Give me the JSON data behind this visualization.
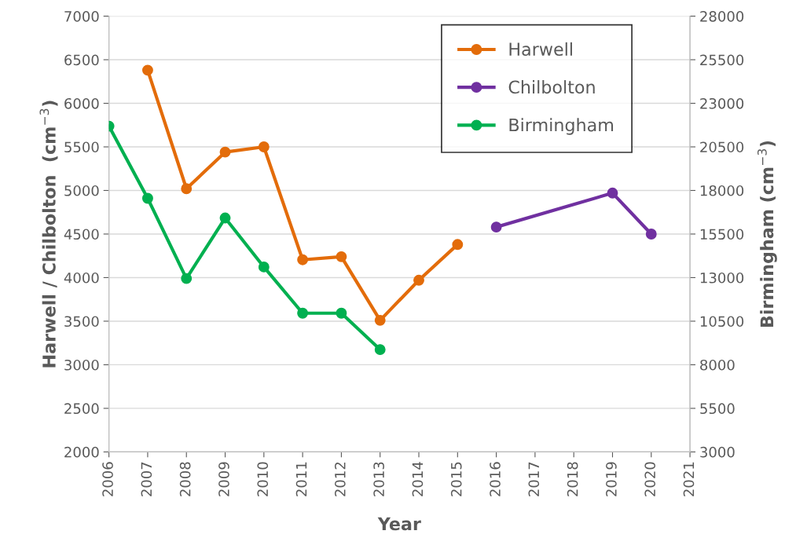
{
  "chart_data": {
    "type": "line",
    "xlabel": "Year",
    "ylabel": "Harwell / Chilbolton  (cm$^{−3}$)",
    "y2label": "Birmingham (cm$^{−3}$)",
    "series": [
      {
        "name": "Harwell",
        "color": "#e36c0a",
        "x": [
          2007,
          2008,
          2009,
          2010,
          2011,
          2012,
          2013,
          2014,
          2015
        ],
        "values": [
          6380,
          5020,
          5440,
          5500,
          4205,
          4240,
          3510,
          3970,
          4380
        ]
      },
      {
        "name": "Chilbolton",
        "color": "#7030a0",
        "x": [
          2016,
          2019,
          2020
        ],
        "values": [
          4580,
          4970,
          4500
        ]
      },
      {
        "name": "Birmingham",
        "color": "#00b050",
        "axis": "y2",
        "x": [
          2006,
          2007,
          2008,
          2009,
          2010,
          2011,
          2012,
          2013
        ],
        "values": [
          21690,
          17550,
          12950,
          16420,
          13610,
          10960,
          10960,
          8870
        ]
      }
    ],
    "xlim": [
      2006,
      2021
    ],
    "xticks": [
      2006,
      2007,
      2008,
      2009,
      2010,
      2011,
      2012,
      2013,
      2014,
      2015,
      2016,
      2017,
      2018,
      2019,
      2020,
      2021
    ],
    "ylim": [
      2000,
      7000
    ],
    "yticks": [
      2000,
      2500,
      3000,
      3500,
      4000,
      4500,
      5000,
      5500,
      6000,
      6500,
      7000
    ],
    "y2lim": [
      3000,
      28000
    ],
    "y2ticks": [
      3000,
      5500,
      8000,
      10500,
      13000,
      15500,
      18000,
      20500,
      23000,
      25500,
      28000
    ],
    "grid": "y",
    "legend": "top right",
    "marker": "circle",
    "line_style": "solid"
  }
}
